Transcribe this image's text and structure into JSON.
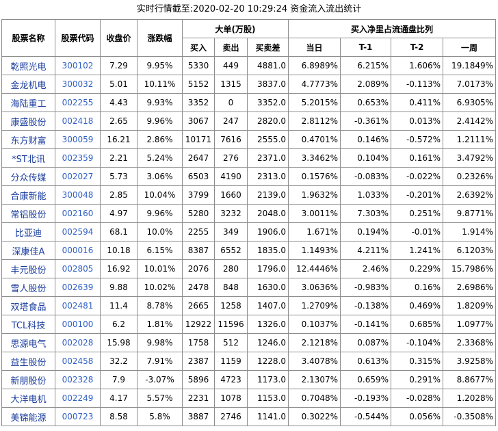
{
  "title": "实时行情截至:2020-02-20 10:29:24 资金流入流出统计",
  "table": {
    "columns": [
      "股票名称",
      "股票代码",
      "收盘价",
      "涨跌幅"
    ],
    "groups": [
      {
        "label": "大单(万股)",
        "columns": [
          "买入",
          "卖出",
          "买卖差"
        ]
      },
      {
        "label": "买入净里占流通盘比列",
        "columns": [
          "当日",
          "T-1",
          "T-2",
          "一周"
        ]
      }
    ],
    "rows": [
      [
        "乾照光电",
        "300102",
        "7.29",
        "9.95%",
        "5330",
        "449",
        "4881.0",
        "6.8989%",
        "6.215%",
        "1.606%",
        "19.1849%"
      ],
      [
        "金龙机电",
        "300032",
        "5.01",
        "10.11%",
        "5152",
        "1315",
        "3837.0",
        "4.7773%",
        "2.089%",
        "-0.113%",
        "7.0173%"
      ],
      [
        "海陆重工",
        "002255",
        "4.43",
        "9.93%",
        "3352",
        "0",
        "3352.0",
        "5.2015%",
        "0.653%",
        "0.411%",
        "6.9305%"
      ],
      [
        "康盛股份",
        "002418",
        "2.65",
        "9.96%",
        "3067",
        "247",
        "2820.0",
        "2.8112%",
        "-0.361%",
        "0.013%",
        "2.4142%"
      ],
      [
        "东方财富",
        "300059",
        "16.21",
        "2.86%",
        "10171",
        "7616",
        "2555.0",
        "0.4701%",
        "0.146%",
        "-0.572%",
        "1.2111%"
      ],
      [
        "*ST北讯",
        "002359",
        "2.21",
        "5.24%",
        "2647",
        "276",
        "2371.0",
        "3.3462%",
        "0.104%",
        "0.161%",
        "3.4792%"
      ],
      [
        "分众传媒",
        "002027",
        "5.73",
        "3.06%",
        "6503",
        "4190",
        "2313.0",
        "0.1576%",
        "-0.083%",
        "-0.022%",
        "0.2326%"
      ],
      [
        "合康新能",
        "300048",
        "2.85",
        "10.04%",
        "3799",
        "1660",
        "2139.0",
        "1.9632%",
        "1.033%",
        "-0.201%",
        "2.6392%"
      ],
      [
        "常铝股份",
        "002160",
        "4.97",
        "9.96%",
        "5280",
        "3232",
        "2048.0",
        "3.0011%",
        "7.303%",
        "0.251%",
        "9.8771%"
      ],
      [
        "比亚迪",
        "002594",
        "68.1",
        "10.0%",
        "2255",
        "349",
        "1906.0",
        "1.671%",
        "0.194%",
        "-0.01%",
        "1.914%"
      ],
      [
        "深康佳A",
        "000016",
        "10.18",
        "6.15%",
        "8387",
        "6552",
        "1835.0",
        "1.1493%",
        "4.211%",
        "1.241%",
        "6.1203%"
      ],
      [
        "丰元股份",
        "002805",
        "16.92",
        "10.01%",
        "2076",
        "280",
        "1796.0",
        "12.4446%",
        "2.46%",
        "0.229%",
        "15.7986%"
      ],
      [
        "雪人股份",
        "002639",
        "9.88",
        "10.02%",
        "2478",
        "848",
        "1630.0",
        "3.0636%",
        "-0.983%",
        "0.16%",
        "2.6986%"
      ],
      [
        "双塔食品",
        "002481",
        "11.4",
        "8.78%",
        "2665",
        "1258",
        "1407.0",
        "1.2709%",
        "-0.138%",
        "0.469%",
        "1.8209%"
      ],
      [
        "TCL科技",
        "000100",
        "6.2",
        "1.81%",
        "12922",
        "11596",
        "1326.0",
        "0.1037%",
        "-0.141%",
        "0.685%",
        "1.0977%"
      ],
      [
        "思源电气",
        "002028",
        "15.98",
        "9.98%",
        "1758",
        "512",
        "1246.0",
        "2.1218%",
        "0.087%",
        "-0.104%",
        "2.3368%"
      ],
      [
        "益生股份",
        "002458",
        "32.2",
        "7.91%",
        "2387",
        "1159",
        "1228.0",
        "3.4078%",
        "0.613%",
        "0.315%",
        "3.9258%"
      ],
      [
        "新朋股份",
        "002328",
        "7.9",
        "-3.07%",
        "5896",
        "4723",
        "1173.0",
        "2.1307%",
        "0.659%",
        "0.291%",
        "8.8677%"
      ],
      [
        "大洋电机",
        "002249",
        "4.17",
        "5.57%",
        "2231",
        "1078",
        "1153.0",
        "0.7048%",
        "-0.193%",
        "-0.028%",
        "1.2028%"
      ],
      [
        "美锦能源",
        "000723",
        "8.58",
        "5.8%",
        "3887",
        "2746",
        "1141.0",
        "0.3022%",
        "-0.544%",
        "0.056%",
        "-0.3508%"
      ]
    ]
  }
}
